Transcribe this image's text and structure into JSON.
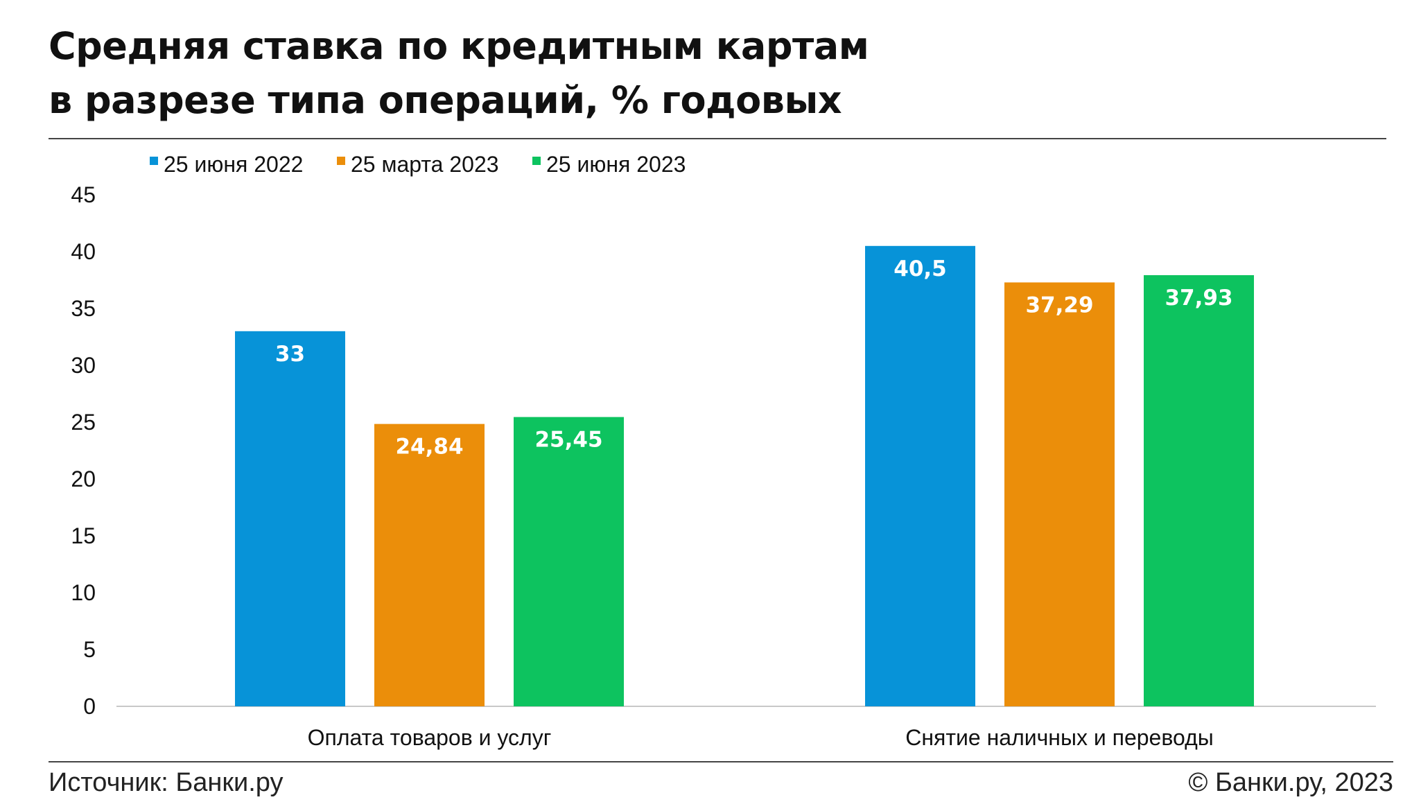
{
  "title_lines": [
    "Средняя ставка по кредитным картам",
    "в разрезе типа операций, % годовых"
  ],
  "source": "Источник: Банки.ру",
  "copyright": "© Банки.ру, 2023",
  "colors": {
    "blue": "#0793d8",
    "orange": "#eb8e0a",
    "green": "#0dc35f",
    "axis": "#c8c8c8"
  },
  "chart_data": {
    "type": "bar",
    "title": "Средняя ставка по кредитным картам в разрезе типа операций, % годовых",
    "categories": [
      "Оплата товаров и услуг",
      "Снятие наличных и переводы"
    ],
    "series": [
      {
        "name": "25 июня 2022",
        "color": "#0793d8",
        "values": [
          33,
          40.5
        ],
        "labels": [
          "33",
          "40,5"
        ]
      },
      {
        "name": "25 марта 2023",
        "color": "#eb8e0a",
        "values": [
          24.84,
          37.29
        ],
        "labels": [
          "24,84",
          "37,29"
        ]
      },
      {
        "name": "25 июня 2023",
        "color": "#0dc35f",
        "values": [
          25.45,
          37.93
        ],
        "labels": [
          "25,45",
          "37,93"
        ]
      }
    ],
    "ylim": [
      0,
      45
    ],
    "yticks": [
      0,
      5,
      10,
      15,
      20,
      25,
      30,
      35,
      40,
      45
    ],
    "grid": false,
    "legend_position": "top-left"
  }
}
